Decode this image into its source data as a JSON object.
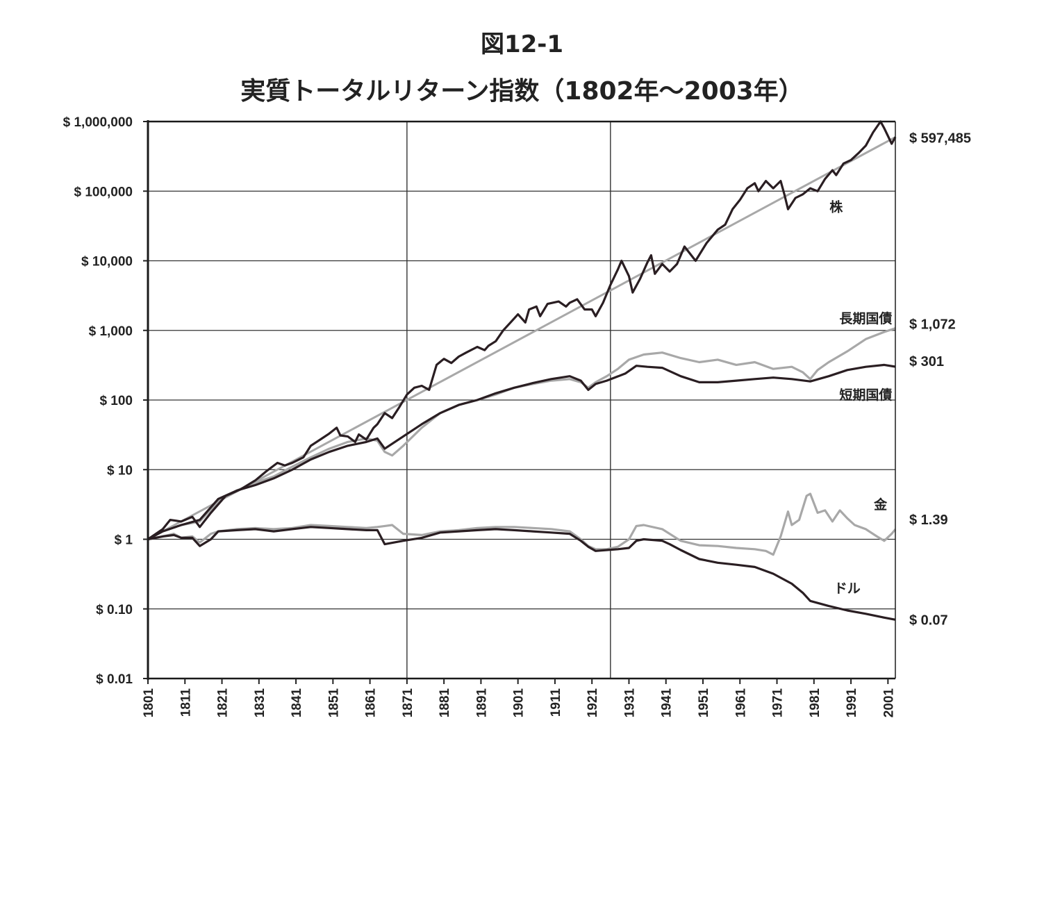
{
  "figure_number": "図12-1",
  "title": "実質トータルリターン指数（1802年～2003年）",
  "chart_data": {
    "type": "line",
    "y_scale": "log",
    "ylim": [
      0.01,
      1000000
    ],
    "xlim": [
      1801,
      2003
    ],
    "grid": true,
    "y_tick_values": [
      0.01,
      0.1,
      1,
      10,
      100,
      1000,
      10000,
      100000,
      1000000
    ],
    "y_tick_labels": [
      "$ 0.01",
      "$ 0.10",
      "$ 1",
      "$ 10",
      "$ 100",
      "$ 1,000",
      "$ 10,000",
      "$ 100,000",
      "$ 1,000,000"
    ],
    "x_tick_values": [
      1801,
      1811,
      1821,
      1831,
      1841,
      1851,
      1861,
      1871,
      1881,
      1891,
      1901,
      1911,
      1921,
      1931,
      1941,
      1951,
      1961,
      1971,
      1981,
      1991,
      2001
    ],
    "x_tick_labels": [
      "1801",
      "1811",
      "1821",
      "1831",
      "1841",
      "1851",
      "1861",
      "1871",
      "1881",
      "1891",
      "1901",
      "1911",
      "1921",
      "1931",
      "1941",
      "1951",
      "1961",
      "1971",
      "1981",
      "1991",
      "2001"
    ],
    "vertical_markers": [
      1871,
      1926
    ],
    "series": [
      {
        "name": "株",
        "end_label": "$ 597,485",
        "color": "#2a1e22",
        "x": [
          1801,
          1805,
          1807,
          1810,
          1813,
          1815,
          1818,
          1822,
          1826,
          1830,
          1833,
          1836,
          1838,
          1840,
          1843,
          1845,
          1848,
          1850,
          1852,
          1853,
          1855,
          1857,
          1858,
          1860,
          1862,
          1863,
          1865,
          1867,
          1869,
          1871,
          1873,
          1875,
          1877,
          1879,
          1881,
          1883,
          1885,
          1887,
          1890,
          1892,
          1893,
          1895,
          1897,
          1899,
          1901,
          1903,
          1904,
          1906,
          1907,
          1909,
          1912,
          1914,
          1915,
          1917,
          1919,
          1921,
          1922,
          1924,
          1926,
          1928,
          1929,
          1931,
          1932,
          1934,
          1936,
          1937,
          1938,
          1940,
          1942,
          1944,
          1946,
          1949,
          1952,
          1955,
          1957,
          1959,
          1961,
          1963,
          1965,
          1966,
          1968,
          1970,
          1972,
          1973,
          1974,
          1976,
          1978,
          1980,
          1982,
          1984,
          1986,
          1987,
          1989,
          1991,
          1993,
          1995,
          1997,
          1999,
          2000,
          2002,
          2003
        ],
        "values": [
          1,
          1.4,
          1.9,
          1.8,
          2.1,
          1.5,
          2.4,
          4.2,
          5.2,
          7,
          9.5,
          12.5,
          11.5,
          12.5,
          15,
          22,
          28,
          33,
          40,
          31,
          30,
          25,
          32,
          27,
          40,
          45,
          65,
          55,
          80,
          120,
          150,
          160,
          140,
          320,
          390,
          340,
          420,
          480,
          580,
          520,
          600,
          700,
          1000,
          1300,
          1700,
          1300,
          2000,
          2200,
          1600,
          2400,
          2600,
          2200,
          2500,
          2800,
          2000,
          2000,
          1600,
          2500,
          4500,
          7500,
          10000,
          6000,
          3500,
          5500,
          9500,
          12000,
          6500,
          9000,
          7000,
          9000,
          16000,
          10000,
          18000,
          28000,
          33000,
          55000,
          75000,
          110000,
          130000,
          100000,
          140000,
          110000,
          140000,
          90000,
          55000,
          80000,
          90000,
          110000,
          100000,
          150000,
          200000,
          170000,
          250000,
          280000,
          350000,
          450000,
          700000,
          1000000,
          800000,
          480000,
          597485
        ]
      },
      {
        "name": "長期国債",
        "end_label": "$ 1,072",
        "color": "#a8a8a8",
        "x": [
          1801,
          1805,
          1810,
          1815,
          1820,
          1825,
          1830,
          1835,
          1840,
          1845,
          1850,
          1855,
          1860,
          1863,
          1865,
          1867,
          1870,
          1875,
          1880,
          1885,
          1890,
          1895,
          1900,
          1905,
          1910,
          1915,
          1918,
          1920,
          1922,
          1925,
          1928,
          1931,
          1935,
          1940,
          1945,
          1950,
          1955,
          1960,
          1965,
          1970,
          1975,
          1978,
          1980,
          1982,
          1985,
          1990,
          1995,
          2000,
          2003
        ],
        "values": [
          1,
          1.3,
          1.6,
          1.8,
          3.5,
          5,
          6.5,
          8,
          11,
          15,
          20,
          25,
          28,
          26,
          18,
          16,
          22,
          40,
          65,
          85,
          100,
          120,
          150,
          170,
          190,
          200,
          180,
          150,
          180,
          220,
          280,
          380,
          450,
          480,
          400,
          350,
          380,
          320,
          350,
          280,
          300,
          250,
          200,
          270,
          350,
          500,
          750,
          950,
          1072
        ]
      },
      {
        "name": "短期国債",
        "end_label": "$ 301",
        "color": "#2a1e22",
        "x": [
          1801,
          1805,
          1810,
          1815,
          1820,
          1825,
          1830,
          1835,
          1840,
          1845,
          1850,
          1855,
          1860,
          1863,
          1865,
          1870,
          1875,
          1880,
          1885,
          1890,
          1895,
          1900,
          1905,
          1910,
          1915,
          1918,
          1920,
          1922,
          1925,
          1930,
          1933,
          1936,
          1940,
          1945,
          1950,
          1955,
          1960,
          1965,
          1970,
          1975,
          1980,
          1985,
          1990,
          1995,
          2000,
          2003
        ],
        "values": [
          1,
          1.3,
          1.6,
          1.9,
          3.8,
          5,
          6,
          7.5,
          10,
          14,
          18,
          22,
          25,
          28,
          20,
          30,
          45,
          65,
          85,
          100,
          125,
          150,
          175,
          200,
          220,
          190,
          140,
          170,
          190,
          240,
          310,
          300,
          290,
          220,
          180,
          180,
          190,
          200,
          210,
          200,
          185,
          220,
          270,
          300,
          320,
          301
        ]
      },
      {
        "name": "金",
        "end_label": "$ 1.39",
        "color": "#a8a8a8",
        "x": [
          1801,
          1805,
          1808,
          1810,
          1813,
          1815,
          1818,
          1820,
          1825,
          1830,
          1835,
          1840,
          1845,
          1850,
          1855,
          1860,
          1863,
          1865,
          1867,
          1870,
          1875,
          1880,
          1885,
          1890,
          1895,
          1900,
          1905,
          1910,
          1915,
          1918,
          1920,
          1922,
          1925,
          1928,
          1931,
          1933,
          1935,
          1940,
          1945,
          1950,
          1955,
          1960,
          1965,
          1968,
          1970,
          1972,
          1974,
          1975,
          1977,
          1979,
          1980,
          1982,
          1984,
          1986,
          1988,
          1990,
          1992,
          1995,
          1998,
          2000,
          2002,
          2003
        ],
        "values": [
          1,
          1.1,
          1.2,
          1.05,
          1.1,
          0.9,
          1.2,
          1.3,
          1.4,
          1.45,
          1.4,
          1.45,
          1.6,
          1.55,
          1.5,
          1.45,
          1.5,
          1.55,
          1.6,
          1.2,
          1.15,
          1.3,
          1.35,
          1.45,
          1.5,
          1.5,
          1.45,
          1.4,
          1.3,
          1.0,
          0.8,
          0.72,
          0.72,
          0.78,
          1.0,
          1.55,
          1.6,
          1.4,
          0.95,
          0.82,
          0.8,
          0.75,
          0.72,
          0.68,
          0.6,
          1.1,
          2.5,
          1.6,
          1.9,
          4.2,
          4.5,
          2.4,
          2.6,
          1.8,
          2.6,
          2.0,
          1.6,
          1.4,
          1.1,
          0.95,
          1.2,
          1.39
        ]
      },
      {
        "name": "ドル",
        "end_label": "$ 0.07",
        "color": "#2a1e22",
        "x": [
          1801,
          1805,
          1808,
          1810,
          1813,
          1815,
          1818,
          1820,
          1825,
          1830,
          1835,
          1840,
          1845,
          1850,
          1855,
          1860,
          1863,
          1865,
          1870,
          1875,
          1880,
          1885,
          1890,
          1895,
          1900,
          1905,
          1910,
          1915,
          1918,
          1920,
          1922,
          1925,
          1928,
          1931,
          1933,
          1935,
          1940,
          1942,
          1945,
          1950,
          1955,
          1960,
          1965,
          1970,
          1975,
          1978,
          1980,
          1985,
          1990,
          1995,
          2000,
          2003
        ],
        "values": [
          1,
          1.1,
          1.15,
          1.05,
          1.05,
          0.8,
          1.0,
          1.3,
          1.35,
          1.4,
          1.3,
          1.4,
          1.5,
          1.45,
          1.4,
          1.35,
          1.35,
          0.85,
          0.95,
          1.05,
          1.25,
          1.3,
          1.35,
          1.4,
          1.35,
          1.3,
          1.25,
          1.2,
          0.95,
          0.78,
          0.68,
          0.7,
          0.72,
          0.75,
          0.95,
          1.0,
          0.95,
          0.85,
          0.7,
          0.52,
          0.46,
          0.43,
          0.4,
          0.32,
          0.23,
          0.17,
          0.13,
          0.11,
          0.095,
          0.085,
          0.075,
          0.07
        ]
      }
    ]
  }
}
